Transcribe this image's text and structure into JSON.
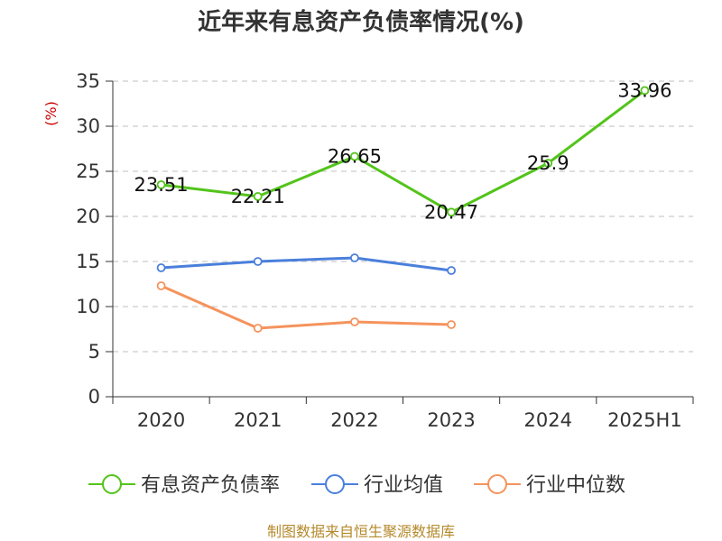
{
  "chart_data": {
    "type": "line",
    "title": "近年来有息资产负债率情况(%)",
    "y_unit": "(%)",
    "categories": [
      "2020",
      "2021",
      "2022",
      "2023",
      "2024",
      "2025H1"
    ],
    "ylim": [
      0,
      35
    ],
    "yticks": [
      0,
      5,
      10,
      15,
      20,
      25,
      30,
      35
    ],
    "grid": true,
    "legend_position": "bottom",
    "series": [
      {
        "name": "有息资产负债率",
        "color": "#52c41a",
        "values": [
          23.51,
          22.21,
          26.65,
          20.47,
          25.9,
          33.96
        ],
        "labels": [
          "23.51",
          "22.21",
          "26.65",
          "20.47",
          "25.9",
          "33.96"
        ]
      },
      {
        "name": "行业均值",
        "color": "#4a7fdc",
        "values": [
          14.3,
          15.0,
          15.4,
          14.0,
          null,
          null
        ]
      },
      {
        "name": "行业中位数",
        "color": "#f5935c",
        "values": [
          12.3,
          7.6,
          8.3,
          8.0,
          null,
          null
        ]
      }
    ]
  },
  "source": "制图数据来自恒生聚源数据库"
}
